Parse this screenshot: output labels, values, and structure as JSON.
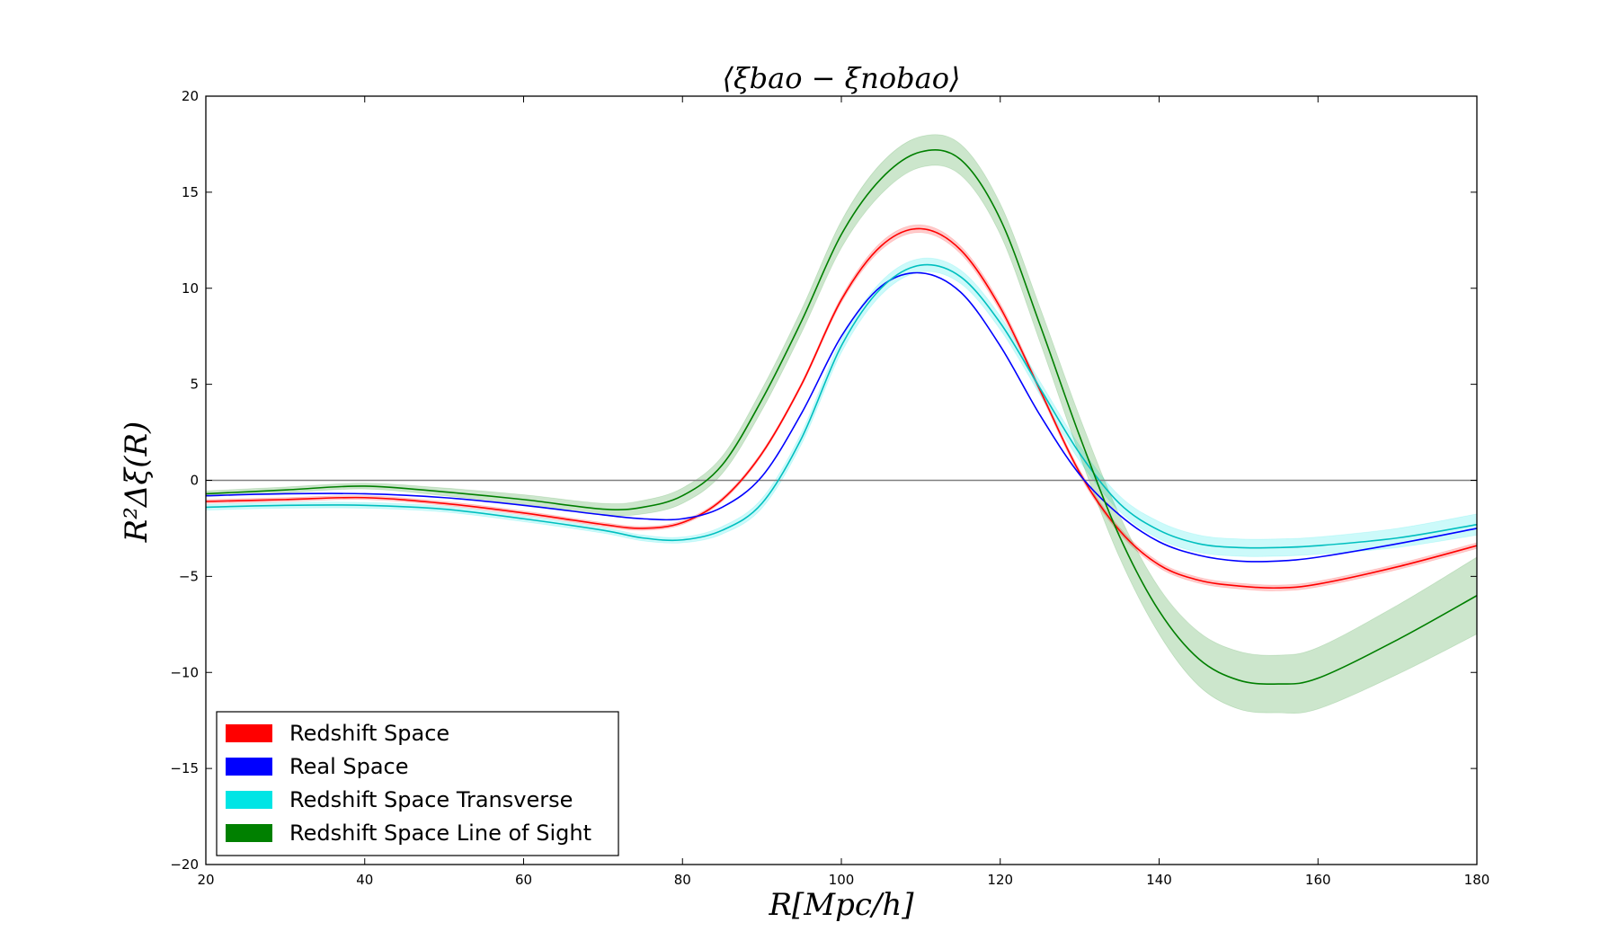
{
  "chart_data": {
    "type": "line",
    "title": "⟨ξbao − ξnobao⟩",
    "xlabel": "R[Mpc/h]",
    "ylabel": "R²Δξ(R)",
    "xlim": [
      20,
      180
    ],
    "ylim": [
      -20,
      20
    ],
    "xticks": [
      20,
      40,
      60,
      80,
      100,
      120,
      140,
      160,
      180
    ],
    "yticks": [
      -20,
      -15,
      -10,
      -5,
      0,
      5,
      10,
      15,
      20
    ],
    "xtick_labels": [
      "20",
      "40",
      "60",
      "80",
      "100",
      "120",
      "140",
      "160",
      "180"
    ],
    "ytick_labels": [
      "−20",
      "−15",
      "−10",
      "−5",
      "0",
      "5",
      "10",
      "15",
      "20"
    ],
    "zero_line": true,
    "grid": false,
    "legend_position": "lower-left",
    "x": [
      20,
      30,
      40,
      50,
      60,
      70,
      75,
      80,
      85,
      90,
      95,
      100,
      105,
      110,
      115,
      120,
      125,
      130,
      135,
      140,
      145,
      150,
      155,
      160,
      170,
      180
    ],
    "series": [
      {
        "name": "Redshift Space",
        "color": "#ff0000",
        "values": [
          -1.1,
          -1.0,
          -0.9,
          -1.2,
          -1.7,
          -2.3,
          -2.5,
          -2.2,
          -1.0,
          1.4,
          5.0,
          9.4,
          12.2,
          13.1,
          12.0,
          9.0,
          4.7,
          0.4,
          -2.6,
          -4.4,
          -5.2,
          -5.5,
          -5.6,
          -5.4,
          -4.5,
          -3.4
        ],
        "band": [
          0.1,
          0.1,
          0.1,
          0.1,
          0.1,
          0.1,
          0.1,
          0.1,
          0.1,
          0.1,
          0.1,
          0.15,
          0.2,
          0.2,
          0.2,
          0.2,
          0.15,
          0.15,
          0.15,
          0.15,
          0.15,
          0.15,
          0.15,
          0.15,
          0.15,
          0.15
        ]
      },
      {
        "name": "Real Space",
        "color": "#0000ff",
        "values": [
          -0.8,
          -0.7,
          -0.7,
          -0.9,
          -1.3,
          -1.8,
          -2.0,
          -2.0,
          -1.4,
          0.2,
          3.5,
          7.5,
          10.1,
          10.8,
          9.8,
          7.0,
          3.4,
          0.3,
          -1.8,
          -3.2,
          -3.9,
          -4.2,
          -4.2,
          -4.0,
          -3.3,
          -2.5
        ],
        "band": [
          0,
          0,
          0,
          0,
          0,
          0,
          0,
          0,
          0,
          0,
          0,
          0,
          0,
          0,
          0,
          0,
          0,
          0,
          0,
          0,
          0,
          0,
          0,
          0,
          0,
          0
        ]
      },
      {
        "name": "Redshift Space Transverse",
        "color": "#00bfbf",
        "band_color": "#00e5e5",
        "values": [
          -1.4,
          -1.3,
          -1.3,
          -1.5,
          -2.0,
          -2.6,
          -3.0,
          -3.1,
          -2.6,
          -1.2,
          2.2,
          7.0,
          10.0,
          11.2,
          10.6,
          8.2,
          4.8,
          1.4,
          -1.2,
          -2.6,
          -3.3,
          -3.5,
          -3.5,
          -3.4,
          -3.0,
          -2.3
        ],
        "band": [
          0.15,
          0.15,
          0.15,
          0.15,
          0.15,
          0.15,
          0.15,
          0.15,
          0.2,
          0.25,
          0.3,
          0.35,
          0.35,
          0.35,
          0.35,
          0.35,
          0.35,
          0.4,
          0.4,
          0.45,
          0.45,
          0.45,
          0.45,
          0.45,
          0.5,
          0.55
        ]
      },
      {
        "name": "Redshift Space Line of Sight",
        "color": "#007f00",
        "band_color": "#008000",
        "values": [
          -0.7,
          -0.5,
          -0.3,
          -0.6,
          -1.0,
          -1.5,
          -1.4,
          -0.8,
          0.8,
          4.2,
          8.3,
          12.8,
          15.7,
          17.1,
          16.7,
          13.6,
          8.1,
          2.3,
          -2.9,
          -6.8,
          -9.3,
          -10.4,
          -10.6,
          -10.3,
          -8.3,
          -6.0
        ],
        "band": [
          0.15,
          0.15,
          0.15,
          0.2,
          0.25,
          0.3,
          0.35,
          0.4,
          0.45,
          0.55,
          0.6,
          0.7,
          0.8,
          0.8,
          0.8,
          0.8,
          0.9,
          1.0,
          1.1,
          1.2,
          1.4,
          1.5,
          1.5,
          1.6,
          1.8,
          2.0
        ]
      }
    ]
  }
}
